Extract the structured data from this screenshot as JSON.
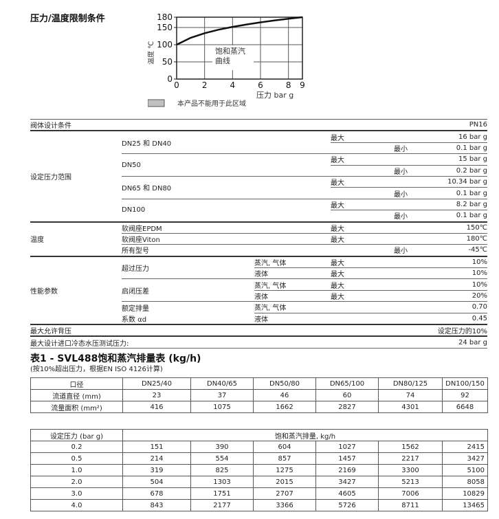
{
  "section_title": "压力/温度限制条件",
  "chart_data": {
    "type": "line",
    "title": "",
    "xlabel": "压力 bar g",
    "ylabel": "温度 ℃",
    "xlim": [
      0,
      9
    ],
    "ylim": [
      0,
      180
    ],
    "xticks": [
      "0",
      "2",
      "4",
      "6",
      "8",
      "9"
    ],
    "yticks": [
      "0",
      "50",
      "100",
      "150",
      "180"
    ],
    "grid": true,
    "annotation": "饱和蒸汽\n曲线",
    "annotation_lines": [
      "饱和蒸汽",
      "曲线"
    ],
    "x": [
      0,
      1,
      2,
      3,
      4,
      5,
      6,
      7,
      8,
      9
    ],
    "y": [
      100,
      120,
      133.5,
      143.6,
      151.8,
      158.8,
      165,
      170.4,
      175.4,
      180
    ],
    "legend": {
      "label": "本产品不能用于此区域",
      "swatch_color": "#c0c0c0"
    }
  },
  "spec": {
    "body_design": {
      "label": "阀体设计条件",
      "value": "PN16"
    },
    "set_pressure": {
      "label": "设定压力范围",
      "max": "最大",
      "min": "最小",
      "groups": [
        {
          "size": "DN25 和 DN40",
          "max": "16 bar g",
          "min": "0.1 bar g"
        },
        {
          "size": "DN50",
          "max": "15 bar g",
          "min": "0.2 bar g"
        },
        {
          "size": "DN65 和 DN80",
          "max": "10.34 bar g",
          "min": "0.1 bar g"
        },
        {
          "size": "DN100",
          "max": "8.2 bar g",
          "min": "0.1 bar g"
        }
      ]
    },
    "temperature": {
      "label": "温度",
      "rows": [
        {
          "item": "软阀座EPDM",
          "kind": "最大",
          "value": "150℃"
        },
        {
          "item": "软阀座Viton",
          "kind": "最大",
          "value": "180℃"
        },
        {
          "item": "所有型号",
          "kind": "最小",
          "value": "-45℃"
        }
      ]
    },
    "performance": {
      "label": "性能参数",
      "overpressure": {
        "label": "超过压力",
        "rows": [
          {
            "medium": "蒸汽, 气体",
            "kind": "最大",
            "value": "10%"
          },
          {
            "medium": "液体",
            "kind": "最大",
            "value": "10%"
          }
        ]
      },
      "blowdown": {
        "label": "启闭压差",
        "rows": [
          {
            "medium": "蒸汽, 气体",
            "kind": "最大",
            "value": "10%"
          },
          {
            "medium": "液体",
            "kind": "最大",
            "value": "20%"
          }
        ]
      },
      "discharge": {
        "label1": "额定排量",
        "label2": "系数 αd",
        "rows": [
          {
            "medium": "蒸汽, 气体",
            "value": "0.70"
          },
          {
            "medium": "液体",
            "value": "0.45"
          }
        ]
      }
    },
    "back_pressure": {
      "label": "最大允许背压",
      "value": "设定压力的10%"
    },
    "hydro_test": {
      "label": "最大设计进口冷态水压测试压力:",
      "value": "24 bar g"
    }
  },
  "table1": {
    "title": "表1 - SVL488饱和蒸汽排量表 (kg/h)",
    "subtitle": "(按10%超出压力，根据EN ISO 4126计算)",
    "header": [
      "口径",
      "DN25/40",
      "DN40/65",
      "DN50/80",
      "DN65/100",
      "DN80/125",
      "DN100/150"
    ],
    "rows": [
      [
        "流道直径 (mm)",
        "23",
        "37",
        "46",
        "60",
        "74",
        "92"
      ],
      [
        "流量面积 (mm²)",
        "416",
        "1075",
        "1662",
        "2827",
        "4301",
        "6648"
      ]
    ]
  },
  "table2": {
    "header": [
      "设定压力 (bar g)",
      "饱和蒸汽排量, kg/h"
    ],
    "rows": [
      [
        "0.2",
        "151",
        "390",
        "604",
        "1027",
        "1562",
        "2415"
      ],
      [
        "0.5",
        "214",
        "554",
        "857",
        "1457",
        "2217",
        "3427"
      ],
      [
        "1.0",
        "319",
        "825",
        "1275",
        "2169",
        "3300",
        "5100"
      ],
      [
        "2.0",
        "504",
        "1303",
        "2015",
        "3427",
        "5213",
        "8058"
      ],
      [
        "3.0",
        "678",
        "1751",
        "2707",
        "4605",
        "7006",
        "10829"
      ],
      [
        "4.0",
        "843",
        "2177",
        "3366",
        "5726",
        "8711",
        "13465"
      ]
    ]
  }
}
